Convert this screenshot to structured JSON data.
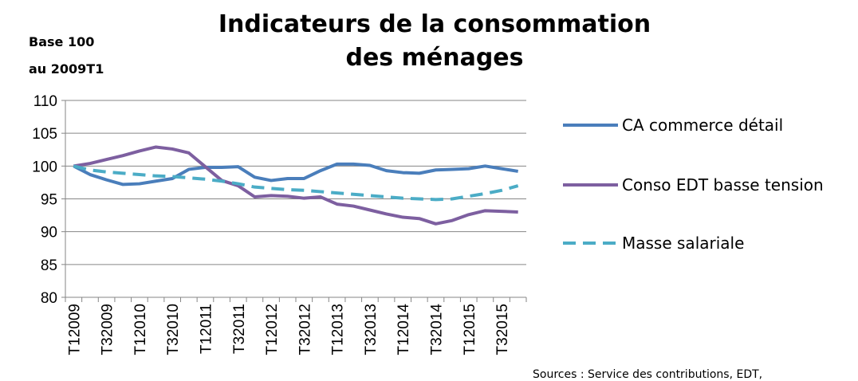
{
  "chart_data": {
    "type": "line",
    "title": [
      "Indicateurs de la consommation",
      "des ménages"
    ],
    "y_label": [
      "Base 100",
      "au 2009T1"
    ],
    "source": "Sources :  Service des contributions, EDT,",
    "categories": [
      "T12009",
      null,
      "T32009",
      null,
      "T12010",
      null,
      "T32010",
      null,
      "T12011",
      null,
      "T32011",
      null,
      "T12012",
      null,
      "T32012",
      null,
      "T12013",
      null,
      "T32013",
      null,
      "T12014",
      null,
      "T32014",
      null,
      "T12015",
      null,
      "T32015",
      null
    ],
    "series": [
      {
        "name": "CA commerce détail",
        "color": "#4a7ebb",
        "dash": false,
        "values": [
          100,
          98.7,
          97.9,
          97.2,
          97.3,
          97.7,
          98.1,
          99.5,
          99.8,
          99.8,
          99.9,
          98.3,
          97.8,
          98.1,
          98.1,
          99.3,
          100.3,
          100.3,
          100.1,
          99.3,
          99.0,
          98.9,
          99.4,
          99.5,
          99.6,
          100.0,
          99.6,
          99.2
        ]
      },
      {
        "name": "Conso EDT basse tension",
        "color": "#7d5fa0",
        "dash": false,
        "values": [
          100,
          100.4,
          101.0,
          101.6,
          102.3,
          102.9,
          102.6,
          102.0,
          99.9,
          97.8,
          97.0,
          95.3,
          95.5,
          95.4,
          95.1,
          95.3,
          94.2,
          93.9,
          93.3,
          92.7,
          92.2,
          92.0,
          91.2,
          91.7,
          92.6,
          93.2,
          93.1,
          93.0
        ]
      },
      {
        "name": "Masse salariale",
        "color": "#4bacc6",
        "dash": true,
        "values": [
          100,
          99.4,
          99.1,
          98.9,
          98.7,
          98.5,
          98.4,
          98.2,
          98.0,
          97.7,
          97.3,
          96.8,
          96.6,
          96.4,
          96.3,
          96.1,
          95.9,
          95.7,
          95.5,
          95.3,
          95.1,
          95.0,
          94.9,
          95.0,
          95.4,
          95.8,
          96.3,
          97.0
        ]
      }
    ],
    "ylim": [
      80,
      110
    ],
    "yticks": [
      80,
      85,
      90,
      95,
      100,
      105,
      110
    ],
    "grid": true,
    "legend": "right"
  }
}
